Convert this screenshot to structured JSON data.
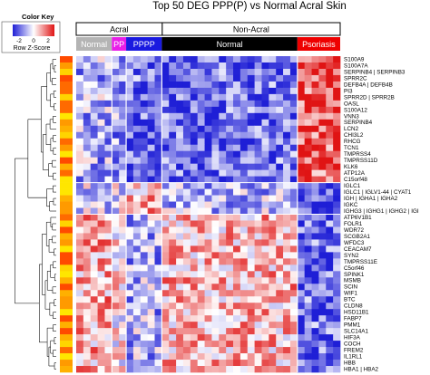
{
  "chart_data": {
    "type": "heatmap",
    "title": "Top 50 DEG PPP(P) vs Normal Acral Skin",
    "color_key": {
      "title": "Color Key",
      "ticks": [
        "-2",
        "0",
        "2"
      ],
      "axis_label": "Row Z-Score",
      "range": [
        -2,
        2
      ],
      "colors": {
        "low": "#1f1fd6",
        "mid": "#ffffff",
        "high": "#e01414"
      }
    },
    "top_groups": [
      {
        "label": "Acral",
        "span": 0.326
      },
      {
        "label": "Non-Acral",
        "span": 0.674
      }
    ],
    "sample_groups": [
      {
        "label": "Normal",
        "count": 5,
        "color": "#b4b4b4",
        "text_color": "#ffffff"
      },
      {
        "label": "PP",
        "count": 2,
        "color": "#e81ee8",
        "text_color": "#ffffff"
      },
      {
        "label": "PPPP",
        "count": 5,
        "color": "#1a1ae0",
        "text_color": "#ffffff"
      },
      {
        "label": "Normal",
        "count": 19,
        "color": "#000000",
        "text_color": "#ffffff"
      },
      {
        "label": "Psoriasis",
        "count": 6,
        "color": "#ee0000",
        "text_color": "#ffffff"
      }
    ],
    "genes": [
      "S100A9",
      "S100A7A",
      "SERPINB4 | SERPINB3",
      "SPRR2C",
      "DEFB4A | DEFB4B",
      "PI3",
      "SPRR2D | SPRR2B",
      "OASL",
      "S100A12",
      "VNN3",
      "SERPINB4",
      "LCN2",
      "CHI3L2",
      "RHCG",
      "TCN1",
      "TMPRSS4",
      "TMPRSS11D",
      "KLK6",
      "ATP12A",
      "C15orf48",
      "IGLC1",
      "IGLC1 | IGLV1-44 | CYAT1",
      "IGH | IGHA1 | IGHA2",
      "IGKC",
      "IGHG3 | IGHG1 | IGHG2 | IGI",
      "ATP6V1B1",
      "FOLR1",
      "WDR72",
      "SCGB2A1",
      "WFDC3",
      "CEACAM7",
      "SYN2",
      "TMPRSS11E",
      "C5orf46",
      "SPINK1",
      "MSMB",
      "SCIN",
      "WIF1",
      "BTC",
      "CLDN8",
      "HSD11B1",
      "FABP7",
      "PMM1",
      "SLC14A1",
      "HIF3A",
      "COCH",
      "FREM2",
      "IL1RL1",
      "HBB",
      "HBA1 | HBA2"
    ],
    "gene_clusters": [
      {
        "name": "cluster-1",
        "rows": [
          0,
          19
        ],
        "pattern": [
          -0.7,
          -0.9,
          -1.3,
          -1.3,
          1.4
        ]
      },
      {
        "name": "cluster-2",
        "rows": [
          20,
          24
        ],
        "pattern": [
          -0.3,
          -0.1,
          0.6,
          -0.6,
          -1.7
        ]
      },
      {
        "name": "cluster-3",
        "rows": [
          25,
          49
        ],
        "pattern": [
          0.7,
          0.2,
          -0.7,
          0.6,
          -1.3
        ]
      }
    ],
    "row_side_colors": [
      "#ff9a00",
      "#ffd400",
      "#ff4a00",
      "#ffb000",
      "#ffe600",
      "#ff6a00"
    ]
  }
}
